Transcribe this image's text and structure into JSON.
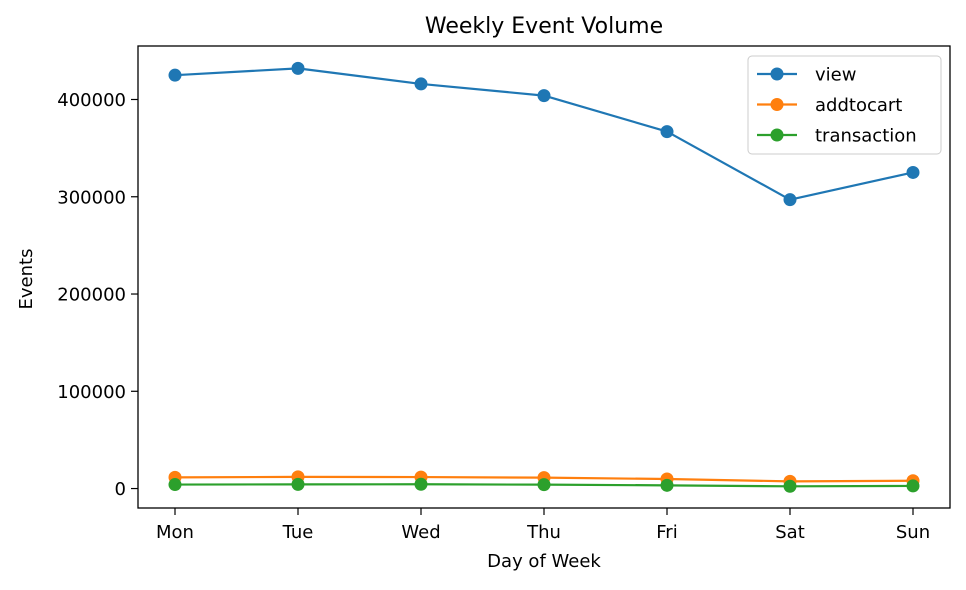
{
  "chart_data": {
    "type": "line",
    "title": "Weekly Event Volume",
    "xlabel": "Day of Week",
    "ylabel": "Events",
    "categories": [
      "Mon",
      "Tue",
      "Wed",
      "Thu",
      "Fri",
      "Sat",
      "Sun"
    ],
    "ylim": [
      -20000,
      455000
    ],
    "yticks": [
      0,
      100000,
      200000,
      300000,
      400000
    ],
    "ytick_labels": [
      "0",
      "100000",
      "200000",
      "300000",
      "400000"
    ],
    "grid": false,
    "legend_position": "top-right",
    "series": [
      {
        "name": "view",
        "color": "#1f77b4",
        "values": [
          425000,
          432000,
          416000,
          404000,
          367000,
          297000,
          325000
        ]
      },
      {
        "name": "addtocart",
        "color": "#ff7f0e",
        "values": [
          11500,
          12000,
          11800,
          11200,
          9800,
          7400,
          8000
        ]
      },
      {
        "name": "transaction",
        "color": "#2ca02c",
        "values": [
          4100,
          4300,
          4400,
          4000,
          3300,
          2300,
          2700
        ]
      }
    ]
  }
}
